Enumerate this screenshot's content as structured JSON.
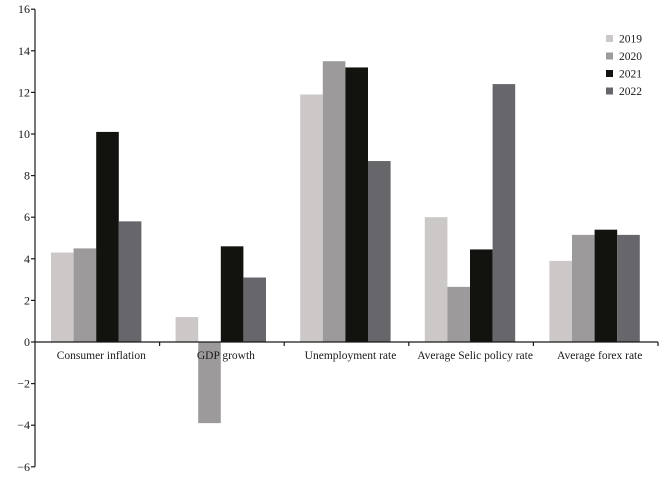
{
  "chart_data": {
    "type": "bar",
    "title": "",
    "xlabel": "",
    "ylabel": "",
    "ylim": [
      -6,
      16
    ],
    "yticks": [
      16,
      14,
      12,
      10,
      8,
      6,
      4,
      2,
      0,
      -2,
      -4,
      -6
    ],
    "ytick_labels": [
      "16",
      "14",
      "12",
      "10",
      "8",
      "6",
      "4",
      "2",
      "0",
      "−2",
      "−4",
      "−6"
    ],
    "grid": false,
    "legend_position": "upper right",
    "categories": [
      "Consumer inflation",
      "GDP growth",
      "Unemployment rate",
      "Average Selic policy rate",
      "Average forex rate"
    ],
    "series": [
      {
        "name": "2019",
        "color": "#cbc8c7",
        "values": [
          4.3,
          1.2,
          11.9,
          6.0,
          3.9
        ]
      },
      {
        "name": "2020",
        "color": "#9c9a9b",
        "values": [
          4.5,
          -3.9,
          13.5,
          2.65,
          5.15
        ]
      },
      {
        "name": "2021",
        "color": "#12120e",
        "values": [
          10.1,
          4.6,
          13.2,
          4.45,
          5.4
        ]
      },
      {
        "name": "2022",
        "color": "#67666b",
        "values": [
          5.8,
          3.1,
          8.7,
          12.4,
          5.15
        ]
      }
    ]
  }
}
